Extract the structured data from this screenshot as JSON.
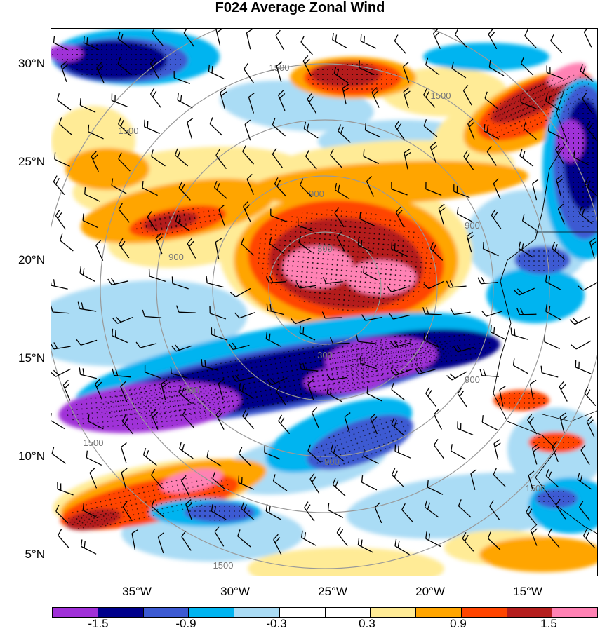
{
  "title": "F024 Average Zonal Wind",
  "map": {
    "lat_labels": [
      "30°N",
      "25°N",
      "20°N",
      "15°N",
      "10°N",
      "5°N"
    ],
    "lon_labels": [
      "35°W",
      "30°W",
      "25°W",
      "20°W",
      "15°W"
    ],
    "lat_range": [
      4,
      32
    ],
    "lon_range": [
      -39.5,
      -11.5
    ],
    "distance_ring_labels": [
      "300",
      "900",
      "1500"
    ],
    "stippling": true,
    "wind_barbs": true,
    "coastline": true
  },
  "colorbar": {
    "labels": [
      "-1.5",
      "-0.9",
      "-0.3",
      "0.3",
      "0.9",
      "1.5"
    ],
    "colors": [
      "#a030d8",
      "#00008b",
      "#3c5ad2",
      "#00b4f0",
      "#aadcf5",
      "#ffffff",
      "#ffffff",
      "#ffeb96",
      "#ffa500",
      "#ff4500",
      "#b41e1e",
      "#ff82b4"
    ]
  },
  "colors": {
    "ring": "#999999",
    "barb": "#000000",
    "coast": "#000000"
  }
}
